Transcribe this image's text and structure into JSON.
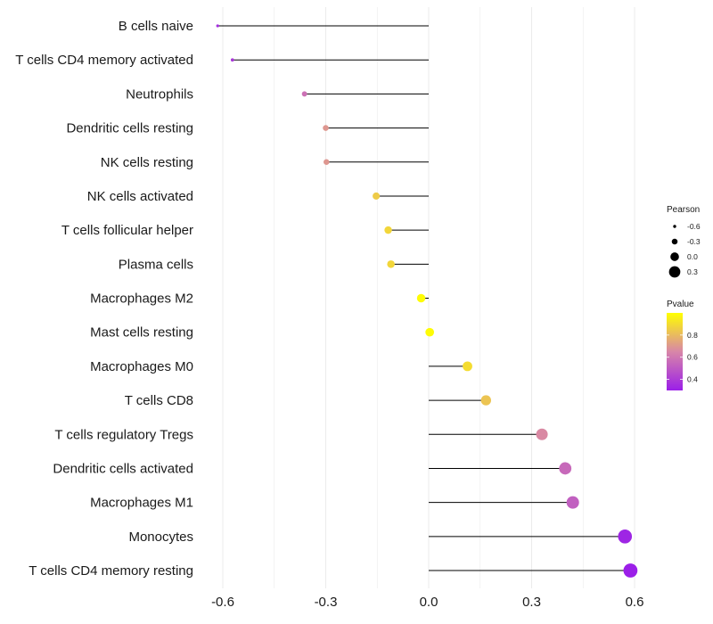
{
  "chart_data": {
    "type": "lollipop",
    "title": "",
    "xlabel": "",
    "ylabel": "",
    "xlim": [
      -0.62,
      0.62
    ],
    "x_ticks": [
      -0.6,
      -0.3,
      0.0,
      0.3,
      0.6
    ],
    "x_tick_labels": [
      "-0.6",
      "-0.3",
      "0.0",
      "0.3",
      "0.6"
    ],
    "categories": [
      "B cells naive",
      "T cells CD4 memory activated",
      "Neutrophils",
      "Dendritic cells resting",
      "NK cells resting",
      "NK cells activated",
      "T cells follicular helper",
      "Plasma cells",
      "Macrophages M2",
      "Mast cells resting",
      "Macrophages M0",
      "T cells CD8",
      "T cells regulatory  Tregs",
      "Dendritic cells activated",
      "Macrophages M1",
      "Monocytes",
      "T cells CD4 memory resting"
    ],
    "pearson": [
      -0.615,
      -0.572,
      -0.362,
      -0.3,
      -0.298,
      -0.153,
      -0.118,
      -0.11,
      -0.022,
      0.003,
      0.113,
      0.167,
      0.33,
      0.398,
      0.42,
      0.572,
      0.588
    ],
    "pvalue": [
      0.35,
      0.38,
      0.58,
      0.7,
      0.7,
      0.85,
      0.88,
      0.88,
      0.99,
      0.99,
      0.9,
      0.83,
      0.66,
      0.55,
      0.52,
      0.32,
      0.3
    ],
    "legend": {
      "size_title": "Pearson",
      "size_entries": [
        {
          "label": "-0.6",
          "value": -0.6
        },
        {
          "label": "-0.3",
          "value": -0.3
        },
        {
          "label": "0.0",
          "value": 0.0
        },
        {
          "label": "0.3",
          "value": 0.3
        }
      ],
      "color_title": "Pvalue",
      "color_range": [
        0.3,
        1.0
      ],
      "color_ticks": [
        {
          "label": "0.8",
          "value": 0.8
        },
        {
          "label": "0.6",
          "value": 0.6
        },
        {
          "label": "0.4",
          "value": 0.4
        }
      ],
      "placement": "right"
    },
    "colors": {
      "low": "#9b1fe8",
      "mid": "#d886a8",
      "high": "#ffff00",
      "stem": "#000000",
      "grid": "#ebebeb"
    }
  }
}
